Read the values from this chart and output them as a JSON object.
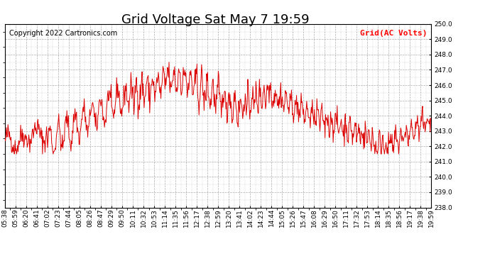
{
  "title": "Grid Voltage Sat May 7 19:59",
  "copyright": "Copyright 2022 Cartronics.com",
  "legend_label": "Grid(AC Volts)",
  "legend_color": "#ff0000",
  "line_color": "#dd0000",
  "background_color": "#ffffff",
  "grid_color": "#999999",
  "ylim": [
    238.0,
    250.0
  ],
  "yticks": [
    238.0,
    239.0,
    240.0,
    241.0,
    242.0,
    243.0,
    244.0,
    245.0,
    246.0,
    247.0,
    248.0,
    249.0,
    250.0
  ],
  "xtick_labels": [
    "05:38",
    "05:59",
    "06:20",
    "06:41",
    "07:02",
    "07:23",
    "07:44",
    "08:05",
    "08:26",
    "08:47",
    "09:29",
    "09:50",
    "10:11",
    "10:32",
    "10:53",
    "11:14",
    "11:35",
    "11:56",
    "12:17",
    "12:38",
    "12:59",
    "13:20",
    "13:41",
    "14:02",
    "14:23",
    "14:44",
    "15:05",
    "15:26",
    "15:47",
    "16:08",
    "16:29",
    "16:50",
    "17:11",
    "17:32",
    "17:53",
    "18:14",
    "18:35",
    "18:56",
    "19:17",
    "19:38",
    "19:59"
  ],
  "title_fontsize": 13,
  "copyright_fontsize": 7,
  "legend_fontsize": 8,
  "tick_fontsize": 6.5,
  "figsize": [
    6.9,
    3.75
  ],
  "dpi": 100
}
